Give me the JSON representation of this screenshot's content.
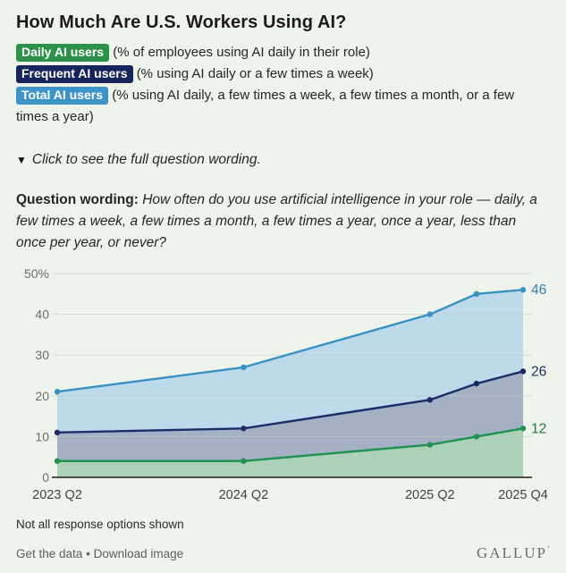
{
  "title": "How Much Are U.S. Workers Using AI?",
  "legend": [
    {
      "label": "Daily AI users",
      "description": "(% of employees using AI daily in their role)",
      "color": "#2d9249"
    },
    {
      "label": "Frequent AI users",
      "description": "(% using AI daily or a few times a week)",
      "color": "#16265c"
    },
    {
      "label": "Total AI users",
      "description": "(% using AI daily, a few times a week, a few times a month, or a few times a year)",
      "color": "#3e93c9"
    }
  ],
  "disclosure": {
    "icon": "▼",
    "text": "Click to see the full question wording."
  },
  "question": {
    "label": "Question wording:",
    "text": "How often do you use artificial intelligence in your role — daily, a few times a week, a few times a month, a few times a year, once a year, less than once per year, or never?"
  },
  "chart_data": {
    "type": "area",
    "x": [
      "2023 Q2",
      "2024 Q2",
      "2025 Q2",
      "2025 Q3",
      "2025 Q4"
    ],
    "x_quarter_offsets": [
      0,
      4,
      8,
      9,
      10
    ],
    "x_ticks": [
      {
        "label": "2023 Q2",
        "q": 0
      },
      {
        "label": "2024 Q2",
        "q": 4
      },
      {
        "label": "2025 Q2",
        "q": 8
      },
      {
        "label": "2025 Q4",
        "q": 10
      }
    ],
    "series": [
      {
        "name": "Total AI users",
        "values": [
          21,
          27,
          40,
          45,
          46
        ],
        "line_color": "#3990c2",
        "fill_color": "#bcdae9",
        "end_label": "46",
        "label_color": "#2e7fb0"
      },
      {
        "name": "Frequent AI users",
        "values": [
          11,
          12,
          19,
          23,
          26
        ],
        "line_color": "#1b2d69",
        "fill_color": "#a4b0c4",
        "end_label": "26",
        "label_color": "#1b2d69"
      },
      {
        "name": "Daily AI users",
        "values": [
          4,
          4,
          8,
          10,
          12
        ],
        "line_color": "#1f9150",
        "fill_color": "#abd1b8",
        "end_label": "12",
        "label_color": "#1f7a47"
      }
    ],
    "ylim": [
      0,
      50
    ],
    "y_ticks": [
      {
        "label": "50%",
        "value": 50
      },
      {
        "label": "40",
        "value": 40
      },
      {
        "label": "30",
        "value": 30
      },
      {
        "label": "20",
        "value": 20
      },
      {
        "label": "10",
        "value": 10
      },
      {
        "label": "0",
        "value": 0
      }
    ],
    "grid": true,
    "legend_position": "top-badges",
    "colors": {
      "grid_line": "#c6cdc4",
      "axis_line": "#1a1a1a",
      "y_tick_text": "#6b6f67",
      "x_tick_text": "#3f443f"
    }
  },
  "footnote": "Not all response options shown",
  "footer": {
    "link1": "Get the data",
    "separator": "•",
    "link2": "Download image",
    "brand": "GALLUP",
    "brand_mark": "’"
  }
}
